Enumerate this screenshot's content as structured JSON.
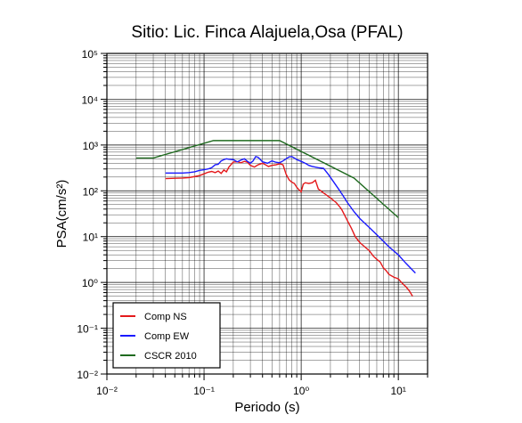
{
  "chart_data": {
    "type": "line",
    "title": "Sitio: Lic. Finca Alajuela,Osa (PFAL)",
    "xlabel": "Periodo (s)",
    "ylabel": "PSA(cm/s²)",
    "xscale": "log",
    "yscale": "log",
    "xlim": [
      0.01,
      20
    ],
    "ylim": [
      0.01,
      100000
    ],
    "grid": true,
    "legend_position": "bottom-left",
    "x_ticks": [
      "10⁻²",
      "10⁻¹",
      "10⁰",
      "10¹"
    ],
    "y_ticks": [
      "10⁻²",
      "10⁻¹",
      "10⁰",
      "10¹",
      "10²",
      "10³",
      "10⁴",
      "10⁵"
    ],
    "series": [
      {
        "name": "Comp NS",
        "color": "#e41a1c",
        "points": [
          [
            0.04,
            185
          ],
          [
            0.05,
            188
          ],
          [
            0.06,
            190
          ],
          [
            0.07,
            195
          ],
          [
            0.08,
            205
          ],
          [
            0.09,
            215
          ],
          [
            0.1,
            235
          ],
          [
            0.11,
            255
          ],
          [
            0.12,
            265
          ],
          [
            0.13,
            250
          ],
          [
            0.14,
            270
          ],
          [
            0.15,
            240
          ],
          [
            0.16,
            285
          ],
          [
            0.17,
            260
          ],
          [
            0.18,
            330
          ],
          [
            0.2,
            425
          ],
          [
            0.22,
            430
          ],
          [
            0.24,
            410
          ],
          [
            0.26,
            440
          ],
          [
            0.28,
            420
          ],
          [
            0.3,
            360
          ],
          [
            0.33,
            330
          ],
          [
            0.36,
            370
          ],
          [
            0.4,
            400
          ],
          [
            0.43,
            370
          ],
          [
            0.46,
            340
          ],
          [
            0.5,
            360
          ],
          [
            0.55,
            370
          ],
          [
            0.6,
            390
          ],
          [
            0.65,
            370
          ],
          [
            0.7,
            230
          ],
          [
            0.75,
            175
          ],
          [
            0.8,
            155
          ],
          [
            0.85,
            145
          ],
          [
            0.9,
            120
          ],
          [
            0.95,
            105
          ],
          [
            1.0,
            95
          ],
          [
            1.05,
            140
          ],
          [
            1.1,
            150
          ],
          [
            1.2,
            145
          ],
          [
            1.3,
            150
          ],
          [
            1.4,
            170
          ],
          [
            1.5,
            110
          ],
          [
            1.7,
            90
          ],
          [
            2.0,
            70
          ],
          [
            2.3,
            55
          ],
          [
            2.6,
            40
          ],
          [
            3.0,
            22
          ],
          [
            3.3,
            15
          ],
          [
            3.6,
            10
          ],
          [
            4.0,
            7.5
          ],
          [
            4.5,
            6
          ],
          [
            5.0,
            5
          ],
          [
            5.5,
            3.8
          ],
          [
            6.0,
            3.2
          ],
          [
            6.5,
            2.8
          ],
          [
            7.0,
            2.1
          ],
          [
            7.5,
            1.8
          ],
          [
            8.0,
            1.5
          ],
          [
            9.0,
            1.3
          ],
          [
            10.0,
            1.2
          ],
          [
            11.0,
            0.95
          ],
          [
            12.0,
            0.8
          ],
          [
            13.0,
            0.65
          ],
          [
            14.0,
            0.5
          ]
        ]
      },
      {
        "name": "Comp EW",
        "color": "#1a1aff",
        "points": [
          [
            0.04,
            245
          ],
          [
            0.05,
            245
          ],
          [
            0.06,
            245
          ],
          [
            0.07,
            250
          ],
          [
            0.08,
            260
          ],
          [
            0.09,
            280
          ],
          [
            0.1,
            290
          ],
          [
            0.11,
            300
          ],
          [
            0.12,
            320
          ],
          [
            0.13,
            370
          ],
          [
            0.14,
            380
          ],
          [
            0.15,
            450
          ],
          [
            0.16,
            480
          ],
          [
            0.17,
            500
          ],
          [
            0.18,
            490
          ],
          [
            0.2,
            480
          ],
          [
            0.22,
            430
          ],
          [
            0.24,
            470
          ],
          [
            0.26,
            500
          ],
          [
            0.28,
            440
          ],
          [
            0.3,
            400
          ],
          [
            0.32,
            450
          ],
          [
            0.34,
            560
          ],
          [
            0.36,
            540
          ],
          [
            0.38,
            480
          ],
          [
            0.4,
            430
          ],
          [
            0.45,
            400
          ],
          [
            0.5,
            450
          ],
          [
            0.55,
            420
          ],
          [
            0.6,
            410
          ],
          [
            0.65,
            450
          ],
          [
            0.7,
            500
          ],
          [
            0.75,
            550
          ],
          [
            0.8,
            560
          ],
          [
            0.85,
            520
          ],
          [
            0.9,
            480
          ],
          [
            1.0,
            440
          ],
          [
            1.1,
            400
          ],
          [
            1.2,
            360
          ],
          [
            1.3,
            340
          ],
          [
            1.5,
            320
          ],
          [
            1.7,
            310
          ],
          [
            1.9,
            230
          ],
          [
            2.1,
            170
          ],
          [
            2.5,
            100
          ],
          [
            3.0,
            55
          ],
          [
            3.5,
            35
          ],
          [
            4.0,
            25
          ],
          [
            5.0,
            16
          ],
          [
            6.0,
            11
          ],
          [
            7.0,
            8
          ],
          [
            8.0,
            6
          ],
          [
            10.0,
            4
          ],
          [
            12.0,
            2.6
          ],
          [
            15.0,
            1.6
          ]
        ]
      },
      {
        "name": "CSCR 2010",
        "color": "#1f6a1f",
        "points": [
          [
            0.02,
            520
          ],
          [
            0.03,
            520
          ],
          [
            0.125,
            1250
          ],
          [
            0.6,
            1250
          ],
          [
            3.5,
            190
          ],
          [
            10.0,
            26
          ]
        ]
      }
    ]
  }
}
